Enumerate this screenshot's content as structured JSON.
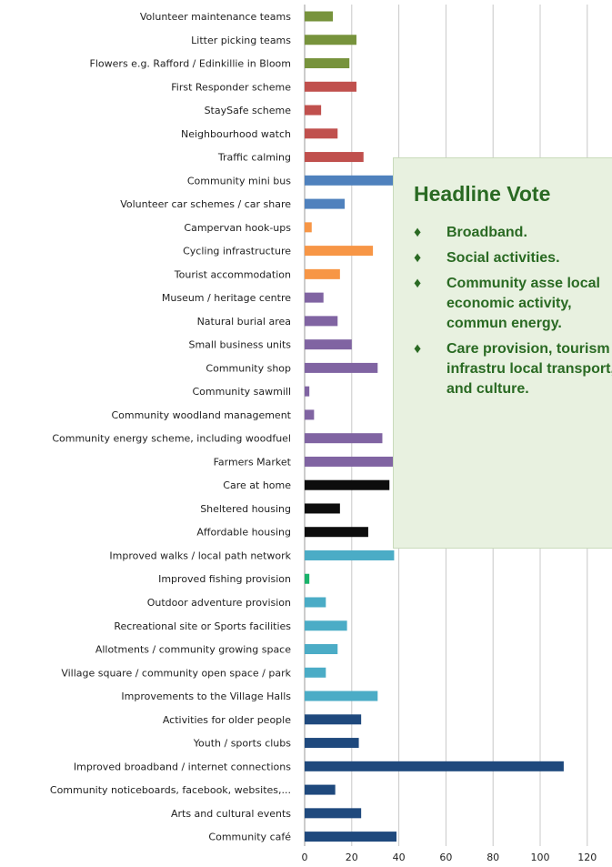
{
  "chart_data": {
    "type": "bar",
    "orientation": "horizontal",
    "categories": [
      "Volunteer maintenance teams",
      "Litter picking teams",
      "Flowers e.g. Rafford  / Edinkillie in Bloom",
      "First Responder scheme",
      "StaySafe scheme",
      "Neighbourhood watch",
      "Traffic calming",
      "Community mini bus",
      "Volunteer car schemes / car share",
      "Campervan hook-ups",
      "Cycling infrastructure",
      "Tourist accommodation",
      "Museum / heritage centre",
      "Natural burial area",
      "Small business units",
      "Community shop",
      "Community sawmill",
      "Community woodland management",
      "Community energy scheme, including woodfuel",
      "Farmers Market",
      "Care at home",
      "Sheltered housing",
      "Affordable housing",
      "Improved walks / local path network",
      "Improved fishing provision",
      "Outdoor adventure provision",
      "Recreational site or Sports facilities",
      "Allotments / community growing space",
      "Village square / community open space / park",
      "Improvements to the Village Halls",
      "Activities for older people",
      "Youth / sports clubs",
      "Improved broadband / internet connections",
      "Community noticeboards, facebook, websites,...",
      "Arts and cultural events",
      "Community café"
    ],
    "values": [
      12,
      22,
      19,
      22,
      7,
      14,
      25,
      38,
      17,
      3,
      29,
      15,
      8,
      14,
      20,
      31,
      2,
      4,
      33,
      38,
      36,
      15,
      27,
      38,
      2,
      9,
      18,
      14,
      9,
      31,
      24,
      23,
      110,
      13,
      24,
      39
    ],
    "bar_colors": [
      "#77933c",
      "#77933c",
      "#77933c",
      "#c0504d",
      "#c0504d",
      "#c0504d",
      "#c0504d",
      "#4f81bd",
      "#4f81bd",
      "#f79646",
      "#f79646",
      "#f79646",
      "#8064a2",
      "#8064a2",
      "#8064a2",
      "#8064a2",
      "#8064a2",
      "#8064a2",
      "#8064a2",
      "#8064a2",
      "#0d0d0d",
      "#0d0d0d",
      "#0d0d0d",
      "#4bacc6",
      "#1ab36b",
      "#4bacc6",
      "#4bacc6",
      "#4bacc6",
      "#4bacc6",
      "#4bacc6",
      "#1f497d",
      "#1f497d",
      "#1f497d",
      "#1f497d",
      "#1f497d",
      "#1f497d"
    ],
    "x_ticks": [
      0,
      20,
      40,
      60,
      80,
      100,
      120
    ],
    "xlim": [
      0,
      130
    ],
    "grid": "vertical",
    "xlabel": "",
    "ylabel": ""
  },
  "headline": {
    "title": "Headline Vote",
    "color": "#2a6a23",
    "background": "#e8f1e0",
    "items": [
      {
        "bullet": "♦",
        "text": "Broadband."
      },
      {
        "bullet": "♦",
        "text": "Social activities."
      },
      {
        "bullet": "♦",
        "text": "Community asse local economic activity, commun energy."
      },
      {
        "bullet": "♦",
        "text": "Care provision, tourism infrastru local transport, a and culture."
      }
    ]
  }
}
